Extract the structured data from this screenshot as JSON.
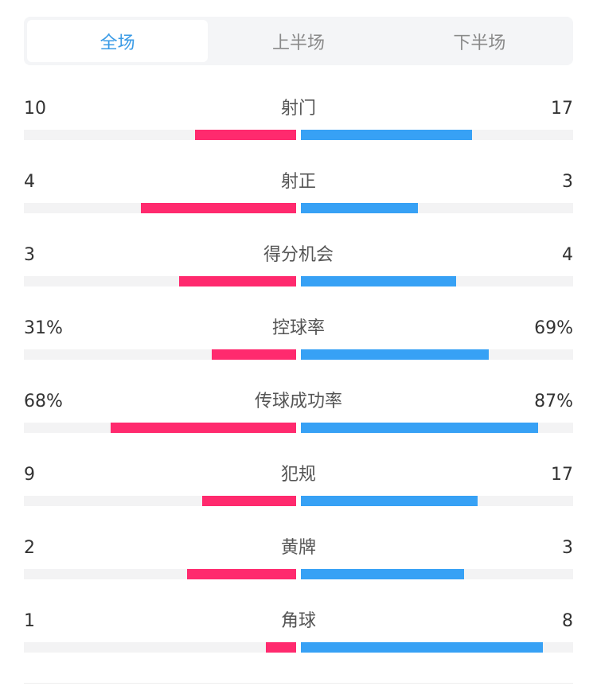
{
  "tabs": [
    {
      "label": "全场",
      "active": true
    },
    {
      "label": "上半场",
      "active": false
    },
    {
      "label": "下半场",
      "active": false
    }
  ],
  "colors": {
    "home": "#FF2A6E",
    "away": "#37A1F5",
    "active_tab": "#3A9BE6"
  },
  "stats": [
    {
      "label": "射门",
      "home": "10",
      "away": "17",
      "home_fill": 0.37,
      "away_fill": 0.63
    },
    {
      "label": "射正",
      "home": "4",
      "away": "3",
      "home_fill": 0.57,
      "away_fill": 0.43
    },
    {
      "label": "得分机会",
      "home": "3",
      "away": "4",
      "home_fill": 0.43,
      "away_fill": 0.57
    },
    {
      "label": "控球率",
      "home": "31%",
      "away": "69%",
      "home_fill": 0.31,
      "away_fill": 0.69
    },
    {
      "label": "传球成功率",
      "home": "68%",
      "away": "87%",
      "home_fill": 0.68,
      "away_fill": 0.87
    },
    {
      "label": "犯规",
      "home": "9",
      "away": "17",
      "home_fill": 0.345,
      "away_fill": 0.65
    },
    {
      "label": "黄牌",
      "home": "2",
      "away": "3",
      "home_fill": 0.4,
      "away_fill": 0.6
    },
    {
      "label": "角球",
      "home": "1",
      "away": "8",
      "home_fill": 0.11,
      "away_fill": 0.89
    }
  ]
}
